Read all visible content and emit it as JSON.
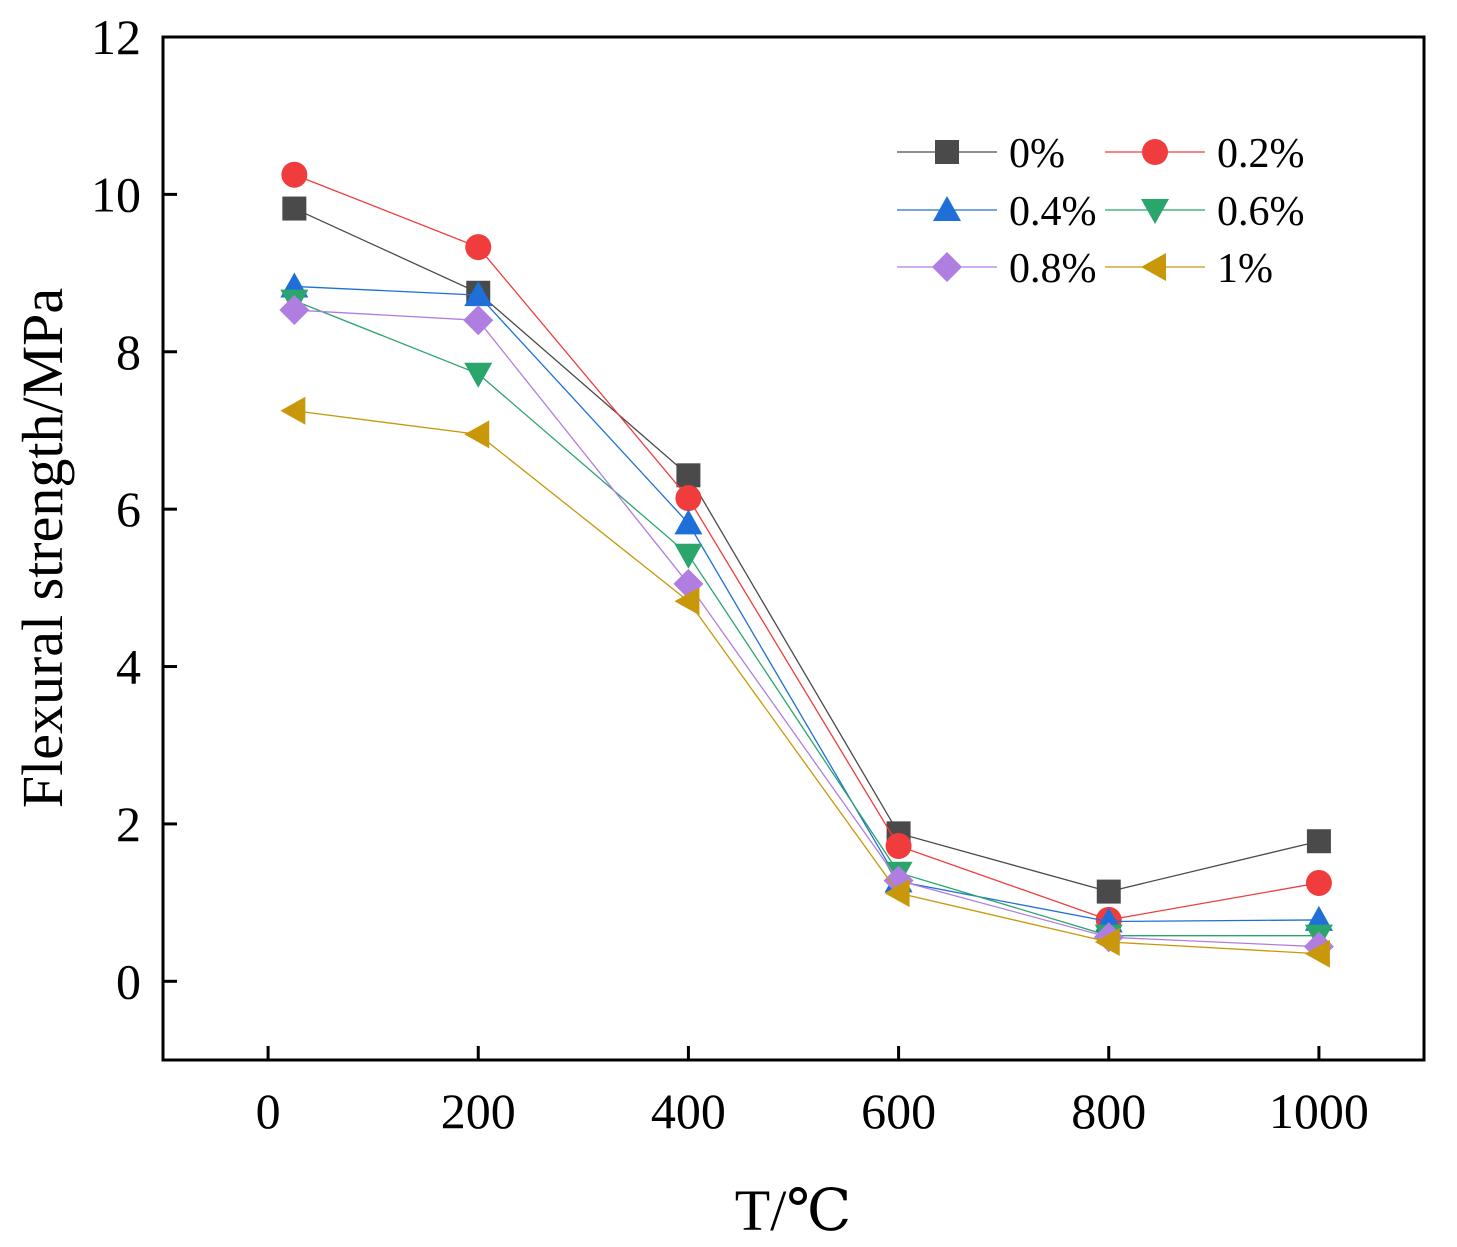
{
  "chart_data": {
    "type": "line",
    "title": "",
    "xlabel": "T/℃",
    "ylabel": "Flexural strength/MPa",
    "xlim": [
      -100,
      1100
    ],
    "ylim": [
      -1,
      12
    ],
    "xticks": [
      0,
      200,
      400,
      600,
      800,
      1000
    ],
    "yticks": [
      0,
      2,
      4,
      6,
      8,
      10,
      12
    ],
    "x": [
      25,
      200,
      400,
      600,
      800,
      1000
    ],
    "grid": false,
    "legend_position": "top-right",
    "series": [
      {
        "name": "0%",
        "marker": "square",
        "color": "#4a4a4a",
        "values": [
          9.82,
          8.75,
          6.43,
          1.88,
          1.14,
          1.78
        ]
      },
      {
        "name": "0.2%",
        "marker": "circle",
        "color": "#f03c3c",
        "values": [
          10.25,
          9.33,
          6.14,
          1.72,
          0.78,
          1.25
        ]
      },
      {
        "name": "0.4%",
        "marker": "triangle-up",
        "color": "#1f6fd8",
        "values": [
          8.83,
          8.72,
          5.82,
          1.27,
          0.76,
          0.78
        ]
      },
      {
        "name": "0.6%",
        "marker": "triangle-down",
        "color": "#2aa56c",
        "values": [
          8.65,
          7.72,
          5.42,
          1.38,
          0.58,
          0.58
        ]
      },
      {
        "name": "0.8%",
        "marker": "diamond",
        "color": "#b07ee0",
        "values": [
          8.53,
          8.4,
          5.05,
          1.28,
          0.56,
          0.44
        ]
      },
      {
        "name": "1%",
        "marker": "triangle-left",
        "color": "#c9980a",
        "values": [
          7.25,
          6.95,
          4.83,
          1.12,
          0.5,
          0.35
        ]
      }
    ]
  }
}
